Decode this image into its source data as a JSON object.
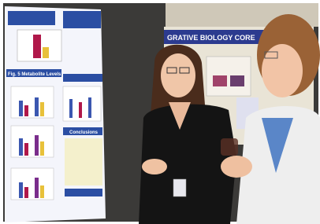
{
  "poster_left": {
    "headings": [
      "Fig. 5 Metabolite Levels",
      "Conclusions"
    ]
  },
  "poster_right": {
    "banner": "GRATIVE BIOLOGY CORE"
  }
}
